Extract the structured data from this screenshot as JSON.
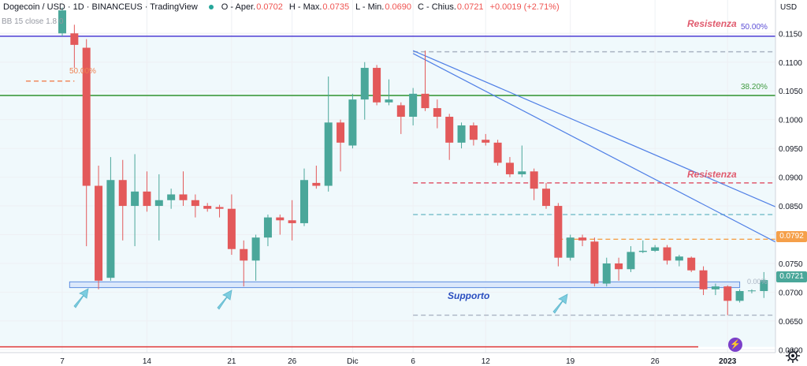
{
  "header": {
    "symbol": "Dogecoin / USD · 1D · BINANCEUS · TradingView",
    "open_label": "O - Aper.",
    "open": "0.0702",
    "high_label": "H - Max.",
    "high": "0.0735",
    "low_label": "L - Min.",
    "low": "0.0690",
    "close_label": "C - Chius.",
    "close": "0.0721",
    "change": "+0.0019 (+2.71%)"
  },
  "indicator_label": "BB 15 close 1.8 0",
  "colors": {
    "up": "#4aa79a",
    "down": "#e3595a",
    "resist": "#5b4dd6",
    "support_fill": "#dbe8fb",
    "trend": "#4f7fe6"
  },
  "price_tags": {
    "current": "0.0721",
    "level": "0.0792"
  },
  "chart_data": {
    "type": "candlestick",
    "currency": "USD",
    "ylim": [
      0.0595,
      0.1208
    ],
    "y_ticks": [
      "0.1150",
      "0.1100",
      "0.1050",
      "0.1000",
      "0.0950",
      "0.0900",
      "0.0850",
      "0.0800",
      "0.0750",
      "0.0700",
      "0.0650",
      "0.0600"
    ],
    "x_ticks": [
      {
        "i": 0,
        "label": "7"
      },
      {
        "i": 7,
        "label": "14"
      },
      {
        "i": 14,
        "label": "21"
      },
      {
        "i": 19,
        "label": "26"
      },
      {
        "i": 24,
        "label": "Dic"
      },
      {
        "i": 29,
        "label": "6"
      },
      {
        "i": 35,
        "label": "12"
      },
      {
        "i": 42,
        "label": "19"
      },
      {
        "i": 49,
        "label": "26"
      },
      {
        "i": 55,
        "label": "2023"
      }
    ],
    "candles": [
      {
        "o": 0.115,
        "h": 0.1195,
        "l": 0.1145,
        "c": 0.119
      },
      {
        "o": 0.115,
        "h": 0.1165,
        "l": 0.109,
        "c": 0.113
      },
      {
        "o": 0.1125,
        "h": 0.114,
        "l": 0.078,
        "c": 0.0885
      },
      {
        "o": 0.0885,
        "h": 0.092,
        "l": 0.0705,
        "c": 0.072
      },
      {
        "o": 0.0725,
        "h": 0.0935,
        "l": 0.072,
        "c": 0.0895
      },
      {
        "o": 0.0895,
        "h": 0.093,
        "l": 0.079,
        "c": 0.085
      },
      {
        "o": 0.085,
        "h": 0.094,
        "l": 0.078,
        "c": 0.0875
      },
      {
        "o": 0.0875,
        "h": 0.091,
        "l": 0.084,
        "c": 0.085
      },
      {
        "o": 0.085,
        "h": 0.0905,
        "l": 0.079,
        "c": 0.086
      },
      {
        "o": 0.086,
        "h": 0.088,
        "l": 0.0845,
        "c": 0.087
      },
      {
        "o": 0.087,
        "h": 0.091,
        "l": 0.085,
        "c": 0.086
      },
      {
        "o": 0.086,
        "h": 0.087,
        "l": 0.083,
        "c": 0.085
      },
      {
        "o": 0.085,
        "h": 0.0855,
        "l": 0.084,
        "c": 0.0845
      },
      {
        "o": 0.0848,
        "h": 0.0852,
        "l": 0.083,
        "c": 0.0845
      },
      {
        "o": 0.0845,
        "h": 0.087,
        "l": 0.0765,
        "c": 0.0775
      },
      {
        "o": 0.0775,
        "h": 0.079,
        "l": 0.071,
        "c": 0.0755
      },
      {
        "o": 0.0755,
        "h": 0.08,
        "l": 0.072,
        "c": 0.0795
      },
      {
        "o": 0.0795,
        "h": 0.0835,
        "l": 0.078,
        "c": 0.083
      },
      {
        "o": 0.083,
        "h": 0.0835,
        "l": 0.08,
        "c": 0.0825
      },
      {
        "o": 0.0825,
        "h": 0.086,
        "l": 0.079,
        "c": 0.082
      },
      {
        "o": 0.082,
        "h": 0.0915,
        "l": 0.0815,
        "c": 0.0895
      },
      {
        "o": 0.089,
        "h": 0.092,
        "l": 0.088,
        "c": 0.0885
      },
      {
        "o": 0.0885,
        "h": 0.1075,
        "l": 0.0875,
        "c": 0.0995
      },
      {
        "o": 0.0995,
        "h": 0.1,
        "l": 0.091,
        "c": 0.096
      },
      {
        "o": 0.0955,
        "h": 0.1045,
        "l": 0.095,
        "c": 0.1035
      },
      {
        "o": 0.1035,
        "h": 0.11,
        "l": 0.1,
        "c": 0.109
      },
      {
        "o": 0.109,
        "h": 0.1095,
        "l": 0.1025,
        "c": 0.103
      },
      {
        "o": 0.103,
        "h": 0.107,
        "l": 0.1025,
        "c": 0.1035
      },
      {
        "o": 0.1025,
        "h": 0.103,
        "l": 0.0975,
        "c": 0.1005
      },
      {
        "o": 0.1005,
        "h": 0.1055,
        "l": 0.099,
        "c": 0.1045
      },
      {
        "o": 0.1045,
        "h": 0.112,
        "l": 0.1015,
        "c": 0.102
      },
      {
        "o": 0.102,
        "h": 0.1035,
        "l": 0.0985,
        "c": 0.1005
      },
      {
        "o": 0.1005,
        "h": 0.101,
        "l": 0.093,
        "c": 0.096
      },
      {
        "o": 0.096,
        "h": 0.0995,
        "l": 0.095,
        "c": 0.099
      },
      {
        "o": 0.099,
        "h": 0.0995,
        "l": 0.0955,
        "c": 0.0965
      },
      {
        "o": 0.0965,
        "h": 0.0975,
        "l": 0.0955,
        "c": 0.096
      },
      {
        "o": 0.096,
        "h": 0.0965,
        "l": 0.092,
        "c": 0.0925
      },
      {
        "o": 0.0925,
        "h": 0.0935,
        "l": 0.09,
        "c": 0.0905
      },
      {
        "o": 0.0905,
        "h": 0.0955,
        "l": 0.09,
        "c": 0.091
      },
      {
        "o": 0.091,
        "h": 0.0915,
        "l": 0.086,
        "c": 0.088
      },
      {
        "o": 0.088,
        "h": 0.089,
        "l": 0.0845,
        "c": 0.085
      },
      {
        "o": 0.085,
        "h": 0.0855,
        "l": 0.0745,
        "c": 0.076
      },
      {
        "o": 0.076,
        "h": 0.08,
        "l": 0.0755,
        "c": 0.0795
      },
      {
        "o": 0.0795,
        "h": 0.08,
        "l": 0.078,
        "c": 0.079
      },
      {
        "o": 0.0788,
        "h": 0.0795,
        "l": 0.071,
        "c": 0.0715
      },
      {
        "o": 0.0715,
        "h": 0.076,
        "l": 0.071,
        "c": 0.075
      },
      {
        "o": 0.075,
        "h": 0.076,
        "l": 0.072,
        "c": 0.074
      },
      {
        "o": 0.074,
        "h": 0.078,
        "l": 0.0735,
        "c": 0.077
      },
      {
        "o": 0.077,
        "h": 0.079,
        "l": 0.0768,
        "c": 0.0772
      },
      {
        "o": 0.0772,
        "h": 0.0782,
        "l": 0.077,
        "c": 0.0778
      },
      {
        "o": 0.0778,
        "h": 0.0782,
        "l": 0.0748,
        "c": 0.0755
      },
      {
        "o": 0.0755,
        "h": 0.0765,
        "l": 0.0745,
        "c": 0.0762
      },
      {
        "o": 0.076,
        "h": 0.0762,
        "l": 0.0735,
        "c": 0.0738
      },
      {
        "o": 0.0738,
        "h": 0.0745,
        "l": 0.0695,
        "c": 0.0705
      },
      {
        "o": 0.0705,
        "h": 0.0715,
        "l": 0.0695,
        "c": 0.071
      },
      {
        "o": 0.071,
        "h": 0.0712,
        "l": 0.066,
        "c": 0.0685
      },
      {
        "o": 0.0685,
        "h": 0.0705,
        "l": 0.0682,
        "c": 0.0702
      },
      {
        "o": 0.0702,
        "h": 0.0705,
        "l": 0.0698,
        "c": 0.0703
      },
      {
        "o": 0.0702,
        "h": 0.0735,
        "l": 0.069,
        "c": 0.0721
      }
    ],
    "lines": [
      {
        "name": "resistance-top",
        "y": 0.1145,
        "color": "#5b4dd6",
        "style": "solid"
      },
      {
        "name": "support-bottom",
        "y": 0.0605,
        "color": "#e04646",
        "style": "solid"
      },
      {
        "name": "fib-38",
        "y": 0.1042,
        "color": "#3f9a3f",
        "style": "solid"
      },
      {
        "name": "level-1118",
        "y": 0.1118,
        "color": "#a9b3c2",
        "style": "dashed",
        "start": 29
      },
      {
        "name": "level-0660",
        "y": 0.066,
        "color": "#a9b3c2",
        "style": "dashed",
        "start": 29
      },
      {
        "name": "resistance-mid",
        "y": 0.089,
        "color": "#e05b6e",
        "style": "dashed",
        "start": 29
      },
      {
        "name": "level-0835",
        "y": 0.0835,
        "color": "#7ec1cc",
        "style": "dashed",
        "start": 29
      },
      {
        "name": "level-0792",
        "y": 0.0792,
        "color": "#f5a04a",
        "style": "dashed",
        "start": 41
      },
      {
        "name": "level-0770-left",
        "y": 0.1067,
        "color": "#f08050",
        "style": "dashed",
        "start": -3,
        "end": 1
      }
    ],
    "trendlines": [
      {
        "from": [
          29,
          0.112
        ],
        "to": [
          61,
          0.083
        ]
      },
      {
        "from": [
          29,
          0.1115
        ],
        "to": [
          61,
          0.0765
        ]
      }
    ],
    "support_zone": {
      "y_top": 0.0718,
      "y_bottom": 0.0708,
      "from": 1,
      "to": 56
    },
    "annotations": {
      "resistenza_top": "Resistenza",
      "fib_50": "50.00%",
      "fib_38": "38.20%",
      "resistenza_mid": "Resistenza",
      "supporto": "Supporto",
      "fib_50_left": "50.00%",
      "fib_0": "0.00%"
    }
  }
}
